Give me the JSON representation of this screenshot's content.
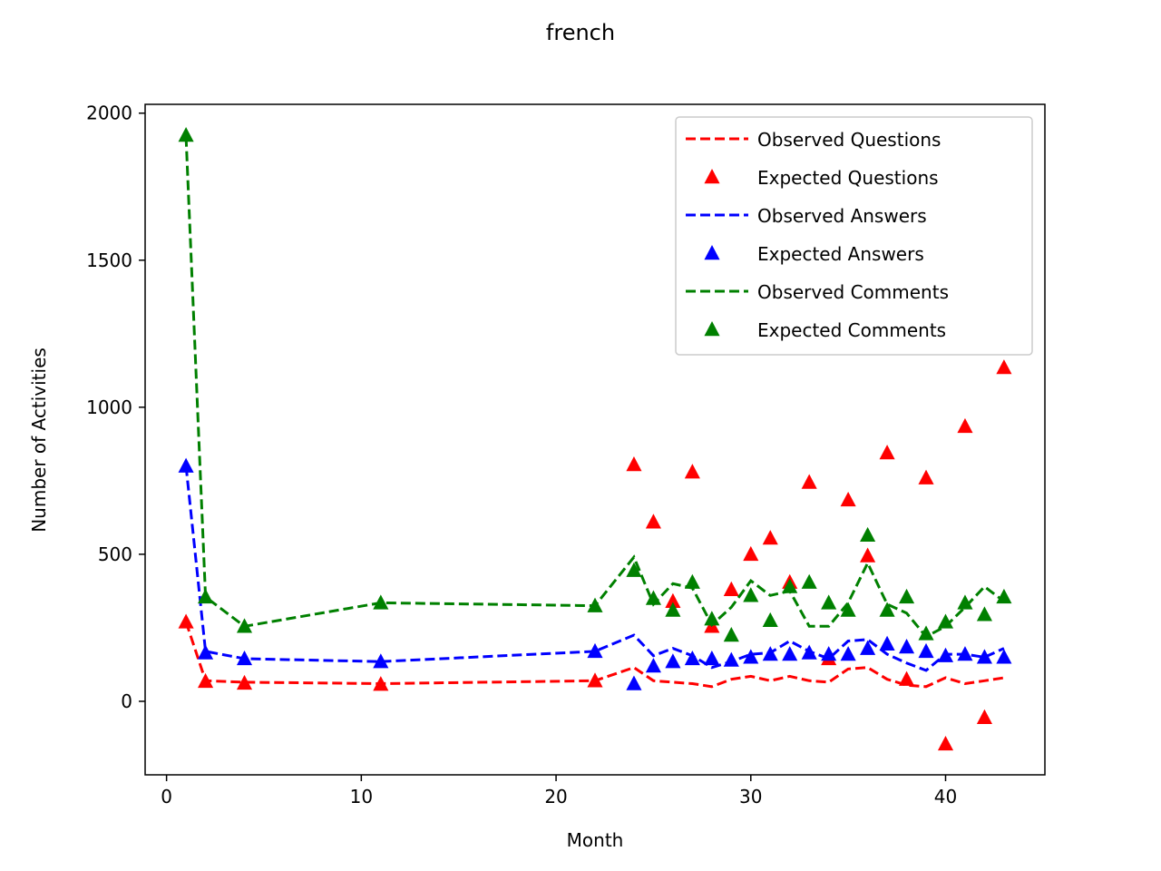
{
  "chart_data": {
    "type": "line",
    "title": "french",
    "xlabel": "Month",
    "ylabel": "Number of Activities",
    "xlim": [
      -1.1,
      45.1
    ],
    "ylim": [
      -250,
      2030
    ],
    "xticks": [
      0,
      10,
      20,
      30,
      40
    ],
    "yticks": [
      0,
      500,
      1000,
      1500,
      2000
    ],
    "grid": false,
    "legend_position": "upper right",
    "x": [
      1,
      2,
      4,
      11,
      22,
      24,
      25,
      26,
      27,
      28,
      29,
      30,
      31,
      32,
      33,
      34,
      35,
      36,
      37,
      38,
      39,
      40,
      41,
      42,
      43
    ],
    "series": [
      {
        "name": "Observed Questions",
        "style": "dashed-line",
        "color": "#ff0000",
        "values": [
          270,
          70,
          65,
          60,
          70,
          115,
          70,
          65,
          60,
          50,
          75,
          85,
          70,
          85,
          70,
          65,
          110,
          115,
          75,
          55,
          50,
          80,
          60,
          70,
          80
        ]
      },
      {
        "name": "Expected Questions",
        "style": "triangle-marker",
        "color": "#ff0000",
        "values": [
          270,
          68,
          62,
          58,
          70,
          805,
          610,
          340,
          780,
          255,
          380,
          500,
          555,
          405,
          745,
          145,
          685,
          495,
          845,
          75,
          760,
          -145,
          935,
          -55,
          1135
        ]
      },
      {
        "name": "Observed Answers",
        "style": "dashed-line",
        "color": "#0000ff",
        "values": [
          800,
          170,
          145,
          135,
          170,
          225,
          155,
          180,
          155,
          115,
          135,
          160,
          165,
          205,
          170,
          145,
          205,
          210,
          160,
          130,
          105,
          160,
          160,
          150,
          180
        ]
      },
      {
        "name": "Expected Answers",
        "style": "triangle-marker",
        "color": "#0000ff",
        "values": [
          800,
          165,
          145,
          135,
          170,
          60,
          120,
          135,
          145,
          145,
          140,
          150,
          160,
          160,
          165,
          160,
          160,
          180,
          195,
          185,
          170,
          155,
          160,
          150,
          150
        ]
      },
      {
        "name": "Observed Comments",
        "style": "dashed-line",
        "color": "#008000",
        "values": [
          1920,
          355,
          255,
          335,
          325,
          490,
          330,
          400,
          385,
          260,
          320,
          410,
          360,
          375,
          255,
          255,
          335,
          470,
          330,
          300,
          220,
          255,
          320,
          390,
          340
        ]
      },
      {
        "name": "Expected Comments",
        "style": "triangle-marker",
        "color": "#008000",
        "values": [
          1925,
          355,
          255,
          335,
          325,
          445,
          350,
          310,
          405,
          280,
          225,
          360,
          275,
          390,
          405,
          335,
          310,
          565,
          310,
          355,
          230,
          270,
          335,
          295,
          355
        ]
      }
    ]
  }
}
